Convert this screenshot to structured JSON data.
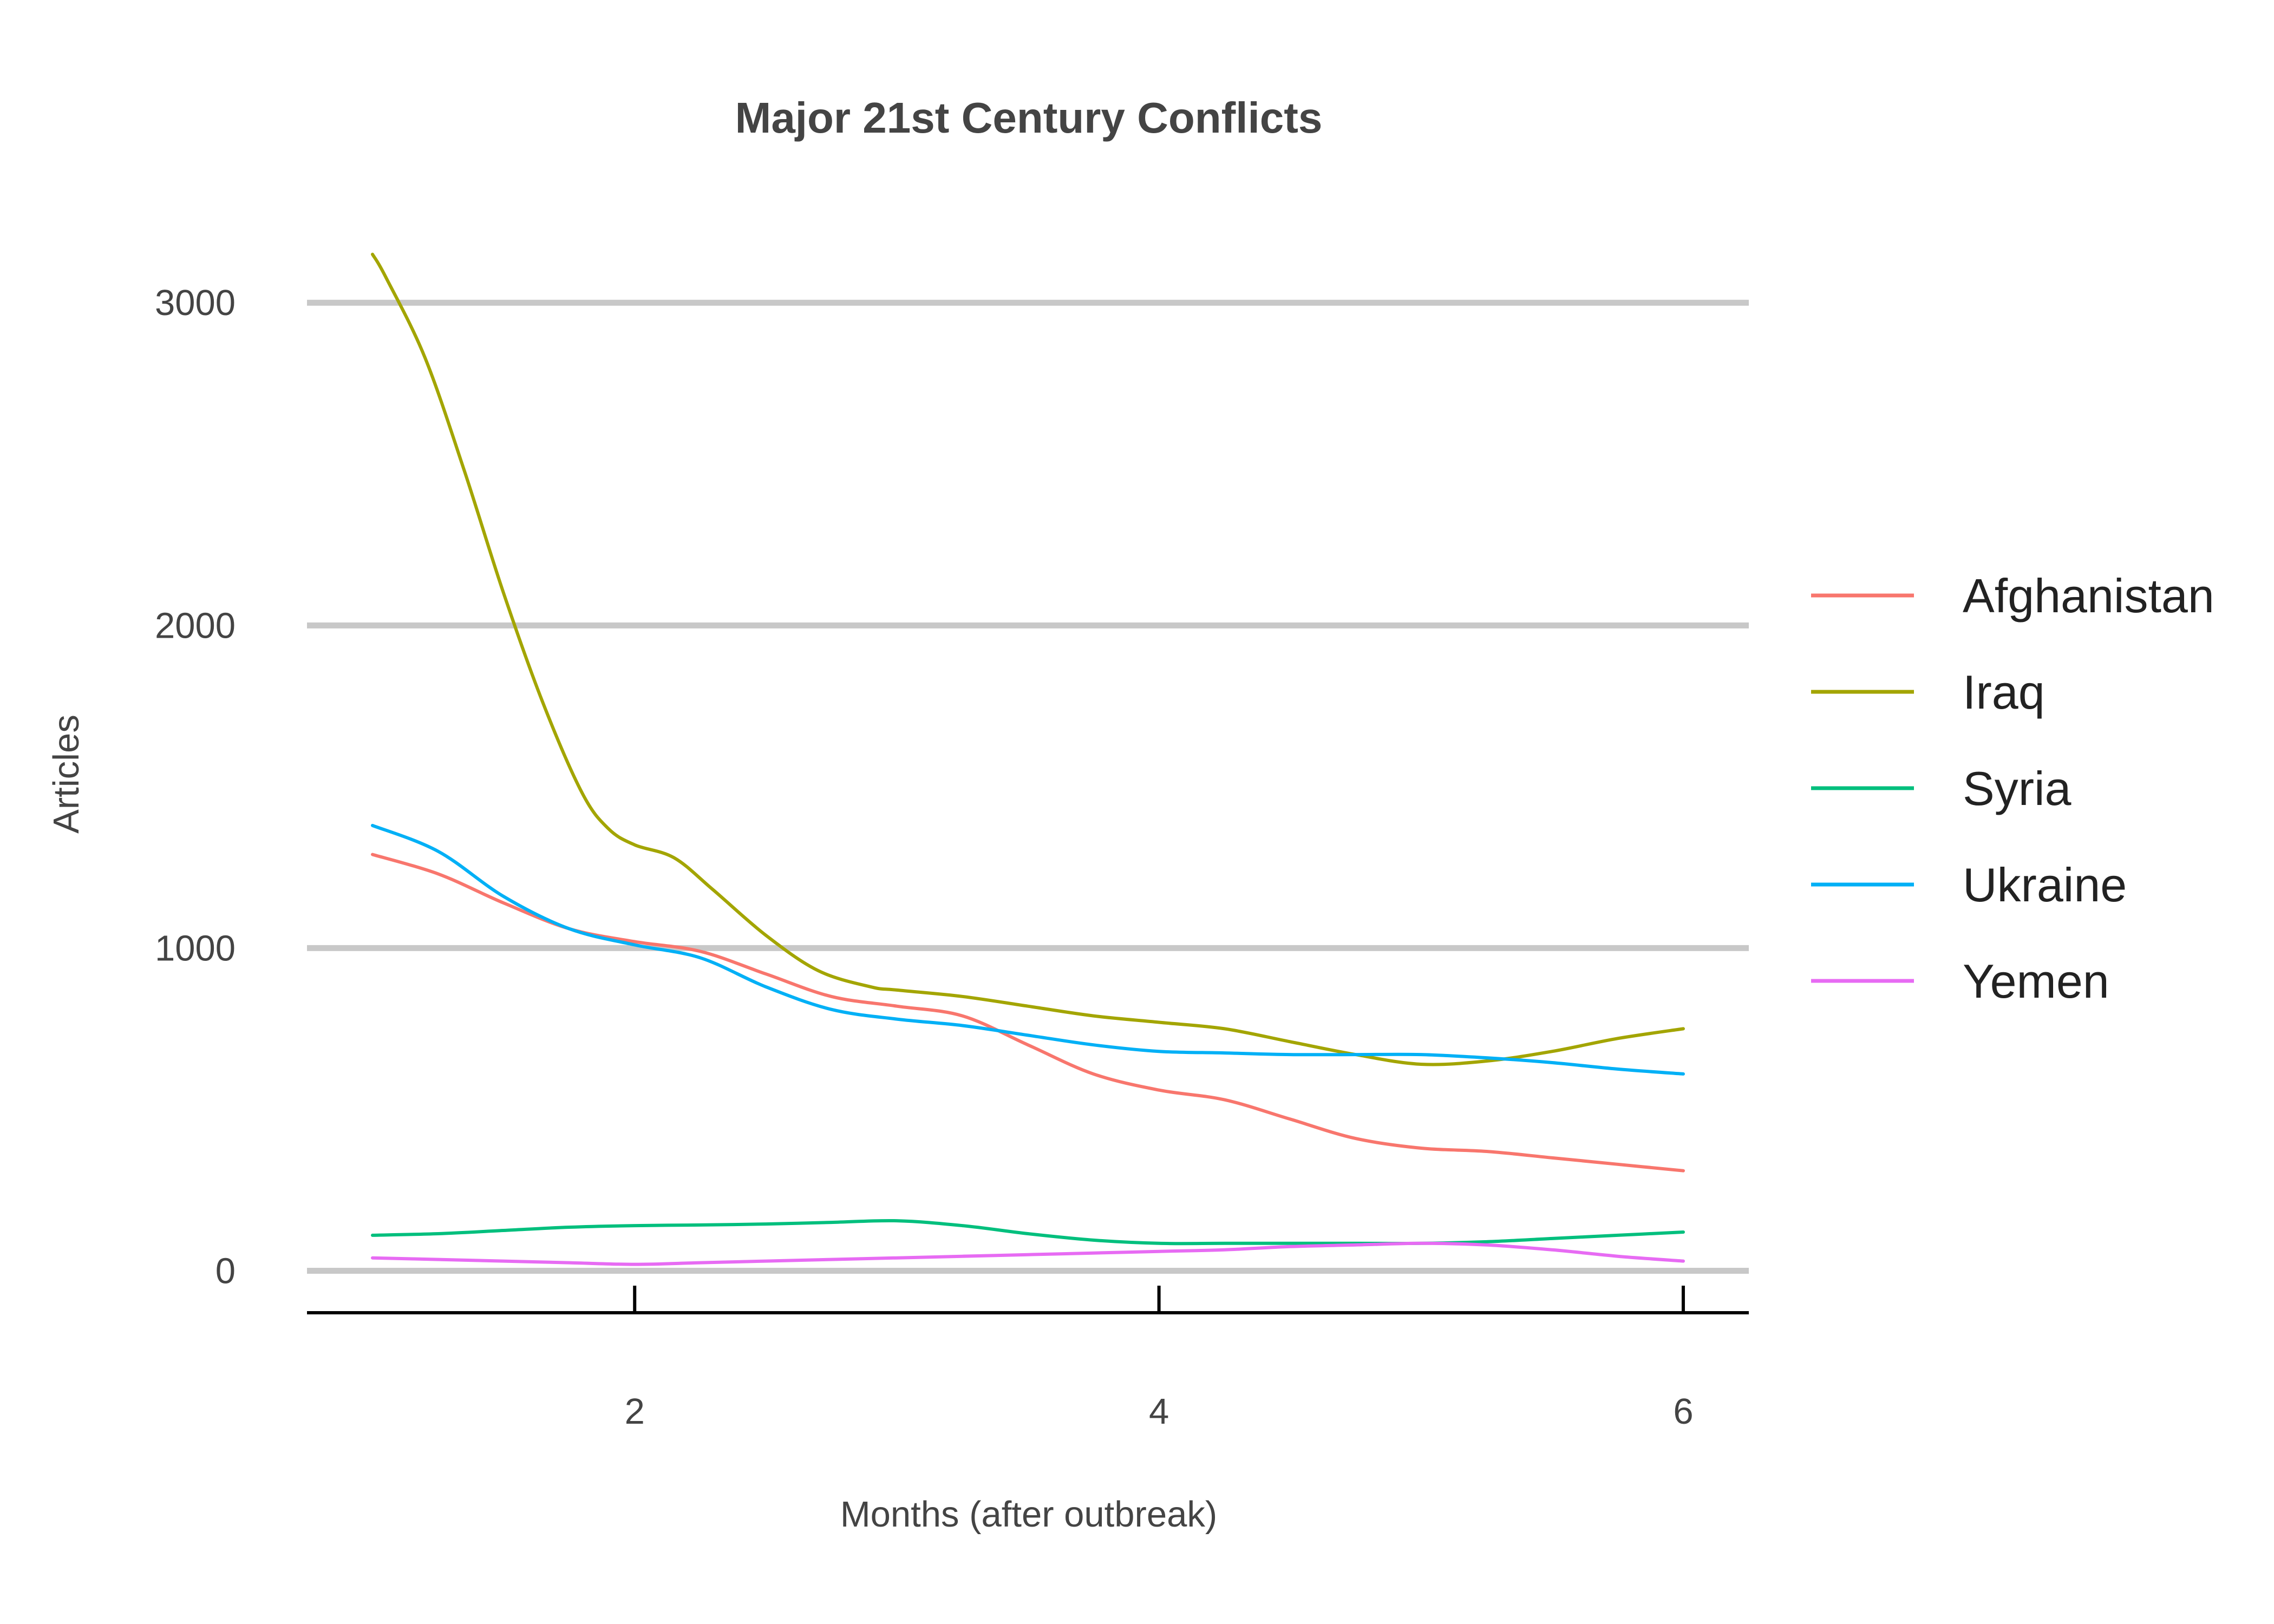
{
  "chart_data": {
    "type": "line",
    "title": "Major 21st Century Conflicts",
    "xlabel": "Months (after outbreak)",
    "ylabel": "Articles",
    "xlim": [
      0.75,
      6.25
    ],
    "ylim": [
      -130,
      3200
    ],
    "x_ticks": [
      2,
      4,
      6
    ],
    "y_ticks": [
      0,
      1000,
      2000,
      3000
    ],
    "grid": "horizontal major",
    "legend_position": "right",
    "series": [
      {
        "name": "Afghanistan",
        "color": "#F8766D",
        "x": [
          1,
          1.25,
          1.5,
          1.75,
          2,
          2.25,
          2.5,
          2.75,
          3,
          3.25,
          3.5,
          3.75,
          4,
          4.25,
          4.5,
          4.75,
          5,
          5.25,
          5.5,
          5.75,
          6
        ],
        "y": [
          1290,
          1230,
          1140,
          1060,
          1020,
          990,
          920,
          850,
          820,
          790,
          700,
          610,
          560,
          530,
          470,
          410,
          380,
          370,
          350,
          330,
          310
        ]
      },
      {
        "name": "Iraq",
        "color": "#A3A500",
        "x": [
          1,
          1.05,
          1.2,
          1.35,
          1.5,
          1.65,
          1.8,
          1.9,
          2,
          2.15,
          2.3,
          2.5,
          2.7,
          2.9,
          3,
          3.25,
          3.5,
          3.75,
          4,
          4.25,
          4.5,
          4.75,
          5,
          5.25,
          5.5,
          5.75,
          6
        ],
        "y": [
          3150,
          3080,
          2830,
          2480,
          2100,
          1760,
          1480,
          1370,
          1320,
          1280,
          1180,
          1040,
          930,
          880,
          870,
          850,
          820,
          790,
          770,
          750,
          710,
          670,
          640,
          650,
          680,
          720,
          750
        ]
      },
      {
        "name": "Syria",
        "color": "#00BF7D",
        "x": [
          1,
          1.25,
          1.5,
          1.75,
          2,
          2.25,
          2.5,
          2.75,
          3,
          3.25,
          3.5,
          3.75,
          4,
          4.25,
          4.5,
          4.75,
          5,
          5.25,
          5.5,
          5.75,
          6
        ],
        "y": [
          110,
          115,
          125,
          135,
          140,
          142,
          145,
          150,
          155,
          140,
          115,
          95,
          85,
          85,
          85,
          85,
          85,
          90,
          100,
          110,
          120
        ]
      },
      {
        "name": "Ukraine",
        "color": "#00B0F6",
        "x": [
          1,
          1.25,
          1.5,
          1.75,
          2,
          2.25,
          2.5,
          2.75,
          3,
          3.25,
          3.5,
          3.75,
          4,
          4.25,
          4.5,
          4.75,
          5,
          5.25,
          5.5,
          5.75,
          6
        ],
        "y": [
          1380,
          1300,
          1160,
          1060,
          1010,
          970,
          880,
          810,
          780,
          760,
          730,
          700,
          680,
          675,
          670,
          670,
          670,
          660,
          645,
          625,
          610
        ]
      },
      {
        "name": "Yemen",
        "color": "#E76BF3",
        "x": [
          1,
          1.25,
          1.5,
          1.75,
          2,
          2.25,
          2.5,
          2.75,
          3,
          3.25,
          3.5,
          3.75,
          4,
          4.25,
          4.5,
          4.75,
          5,
          5.25,
          5.5,
          5.75,
          6
        ],
        "y": [
          40,
          35,
          30,
          25,
          20,
          25,
          30,
          35,
          40,
          45,
          50,
          55,
          60,
          65,
          75,
          80,
          85,
          80,
          65,
          45,
          30
        ]
      }
    ]
  }
}
